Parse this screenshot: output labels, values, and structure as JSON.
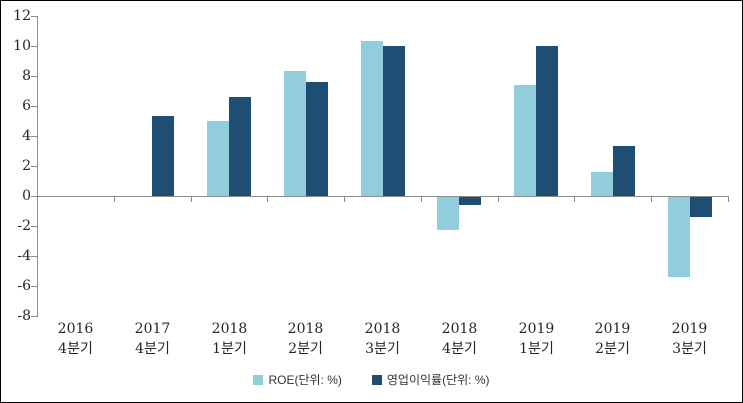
{
  "chart_data": {
    "type": "bar",
    "title": "",
    "xlabel": "",
    "ylabel": "",
    "categories": [
      {
        "year": "2016",
        "quarter": "4분기"
      },
      {
        "year": "2017",
        "quarter": "4분기"
      },
      {
        "year": "2018",
        "quarter": "1분기"
      },
      {
        "year": "2018",
        "quarter": "2분기"
      },
      {
        "year": "2018",
        "quarter": "3분기"
      },
      {
        "year": "2018",
        "quarter": "4분기"
      },
      {
        "year": "2019",
        "quarter": "1분기"
      },
      {
        "year": "2019",
        "quarter": "2분기"
      },
      {
        "year": "2019",
        "quarter": "3분기"
      }
    ],
    "series": [
      {
        "name": "ROE(단위: %)",
        "color": "#92CDDC",
        "values": [
          null,
          null,
          5.0,
          8.3,
          10.3,
          -2.2,
          7.4,
          1.6,
          -5.3
        ]
      },
      {
        "name": "영업이익률(단위: %)",
        "color": "#1F4E74",
        "values": [
          null,
          5.3,
          6.6,
          7.6,
          10.0,
          -0.5,
          10.0,
          3.3,
          -1.3
        ]
      }
    ],
    "ylim": [
      -8,
      12
    ],
    "ytick_step": 2,
    "ytick_labels": [
      "-8",
      "-6",
      "-4",
      "-2",
      "0",
      "2",
      "4",
      "6",
      "8",
      "10",
      "12"
    ],
    "grid": false,
    "legend_position": "bottom",
    "axis_color": "#8C8C8C",
    "label_color": "#262626",
    "background_color": "#FFFFFF",
    "border_color": "#000000"
  }
}
